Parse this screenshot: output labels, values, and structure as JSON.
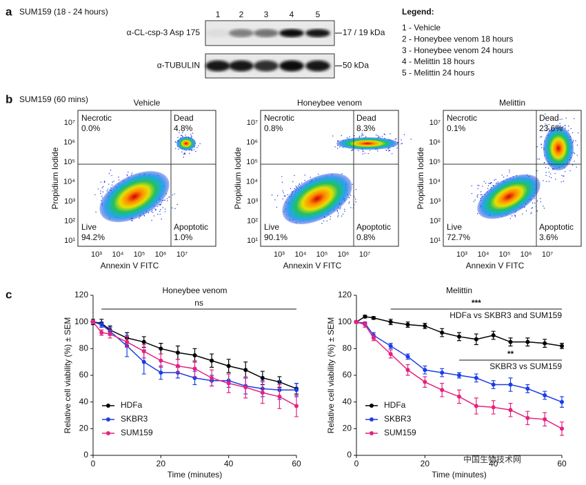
{
  "panel_a": {
    "label": "a",
    "title": "SUM159 (18 - 24 hours)",
    "lanes": [
      "1",
      "2",
      "3",
      "4",
      "5"
    ],
    "blots": [
      {
        "name": "α-CL-csp-3 Asp 175",
        "size": "17 / 19 kDa"
      },
      {
        "name": "α-TUBULIN",
        "size": "50 kDa"
      }
    ],
    "legend_title": "Legend:",
    "legend_items": [
      "1 - Vehicle",
      "2 - Honeybee venom 18 hours",
      "3 - Honeybee venom 24 hours",
      "4 - Melittin 18 hours",
      "5 - Melittin 24 hours"
    ]
  },
  "panel_b": {
    "label": "b",
    "title": "SUM159 (60 mins)",
    "y_label": "Propidium Iodide",
    "x_label": "Annexin V FITC",
    "y_ticks": [
      "10¹",
      "10²",
      "10³",
      "10⁴",
      "10⁵",
      "10⁶",
      "10⁷"
    ],
    "x_ticks": [
      "10³",
      "10⁴",
      "10⁵",
      "10⁶",
      "10⁷"
    ],
    "plots": [
      {
        "title": "Vehicle",
        "quadrants": [
          {
            "name": "Necrotic",
            "value": "0.0%"
          },
          {
            "name": "Dead",
            "value": "4.8%"
          },
          {
            "name": "Live",
            "value": "94.2%"
          },
          {
            "name": "Apoptotic",
            "value": "1.0%"
          }
        ]
      },
      {
        "title": "Honeybee venom",
        "quadrants": [
          {
            "name": "Necrotic",
            "value": "0.8%"
          },
          {
            "name": "Dead",
            "value": "8.3%"
          },
          {
            "name": "Live",
            "value": "90.1%"
          },
          {
            "name": "Apoptotic",
            "value": "0.8%"
          }
        ]
      },
      {
        "title": "Melittin",
        "quadrants": [
          {
            "name": "Necrotic",
            "value": "0.1%"
          },
          {
            "name": "Dead",
            "value": "23.6%"
          },
          {
            "name": "Live",
            "value": "72.7%"
          },
          {
            "name": "Apoptotic",
            "value": "3.6%"
          }
        ]
      }
    ]
  },
  "panel_c": {
    "label": "c"
  },
  "chart_data": [
    {
      "type": "line",
      "title": "Honeybee venom",
      "x_label": "Time (minutes)",
      "y_label": "Relative cell viability (%) ± SEM",
      "x": [
        0,
        2.5,
        5,
        10,
        15,
        20,
        25,
        30,
        35,
        40,
        45,
        50,
        55,
        60
      ],
      "xlim": [
        0,
        60
      ],
      "xticks": [
        0,
        20,
        40,
        60
      ],
      "ylim": [
        0,
        120
      ],
      "yticks": [
        0,
        20,
        40,
        60,
        80,
        100,
        120
      ],
      "legend": "lower left",
      "series": [
        {
          "name": "HDFa",
          "color": "#000000",
          "values": [
            100,
            99,
            94,
            88,
            85,
            80,
            77,
            75,
            71,
            67,
            64,
            58,
            55,
            50
          ],
          "errors": [
            2,
            3,
            3,
            4,
            4,
            4,
            5,
            5,
            5,
            5,
            6,
            5,
            4,
            4
          ]
        },
        {
          "name": "SKBR3",
          "color": "#1a3de8",
          "values": [
            100,
            98,
            93,
            82,
            70,
            62,
            62,
            58,
            56,
            56,
            52,
            50,
            49,
            49
          ],
          "errors": [
            1,
            2,
            3,
            8,
            9,
            5,
            4,
            5,
            4,
            5,
            6,
            6,
            7,
            5
          ]
        },
        {
          "name": "SUM159",
          "color": "#e6217f",
          "values": [
            100,
            92,
            91,
            85,
            78,
            71,
            67,
            65,
            58,
            54,
            51,
            47,
            44,
            37
          ],
          "errors": [
            1,
            2,
            3,
            4,
            5,
            5,
            5,
            6,
            6,
            7,
            8,
            8,
            9,
            8
          ]
        }
      ],
      "annotations": [
        {
          "stars": "ns",
          "from": 2.5,
          "to": 60
        }
      ]
    },
    {
      "type": "line",
      "title": "Melittin",
      "x_label": "Time (minutes)",
      "y_label": "Relative cell viability (%) ± SEM",
      "x": [
        0,
        2.5,
        5,
        10,
        15,
        20,
        25,
        30,
        35,
        40,
        45,
        50,
        55,
        60
      ],
      "xlim": [
        0,
        60
      ],
      "xticks": [
        0,
        20,
        40,
        60
      ],
      "ylim": [
        0,
        120
      ],
      "yticks": [
        0,
        20,
        40,
        60,
        80,
        100,
        120
      ],
      "legend": "lower left",
      "series": [
        {
          "name": "HDFa",
          "color": "#000000",
          "values": [
            100,
            104,
            103,
            100,
            98,
            97,
            92,
            89,
            87,
            90,
            85,
            85,
            84,
            82
          ],
          "errors": [
            1,
            1,
            1,
            2,
            2,
            2,
            3,
            3,
            4,
            3,
            3,
            3,
            3,
            2
          ]
        },
        {
          "name": "SKBR3",
          "color": "#1a3de8",
          "values": [
            100,
            99,
            90,
            82,
            74,
            64,
            62,
            60,
            58,
            53,
            53,
            50,
            45,
            40
          ],
          "errors": [
            1,
            1,
            2,
            2,
            2,
            3,
            3,
            2,
            3,
            3,
            5,
            3,
            3,
            4
          ]
        },
        {
          "name": "SUM159",
          "color": "#e6217f",
          "values": [
            100,
            98,
            88,
            76,
            64,
            55,
            49,
            44,
            37,
            36,
            34,
            28,
            27,
            20
          ],
          "errors": [
            1,
            2,
            2,
            3,
            4,
            4,
            5,
            5,
            6,
            5,
            5,
            5,
            5,
            5
          ]
        }
      ],
      "annotations": [
        {
          "stars": "***",
          "label": "HDFa vs SKBR3 and SUM159",
          "from": 10,
          "to": 60
        },
        {
          "stars": "**",
          "label": "SKBR3 vs SUM159",
          "from": 30,
          "to": 60
        }
      ]
    }
  ],
  "watermark": "中国生物技术网"
}
